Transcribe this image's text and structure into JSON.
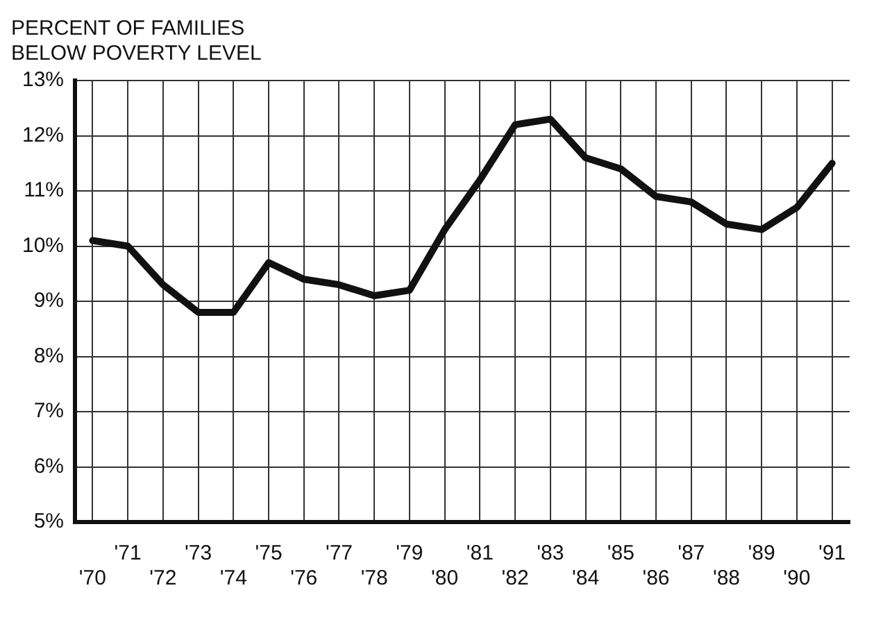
{
  "chart_data": {
    "type": "line",
    "title": "PERCENT OF FAMILIES\nBELOW POVERTY LEVEL",
    "categories": [
      "'70",
      "'71",
      "'72",
      "'73",
      "'74",
      "'75",
      "'76",
      "'77",
      "'78",
      "'79",
      "'80",
      "'81",
      "'82",
      "'83",
      "'84",
      "'85",
      "'86",
      "'87",
      "'88",
      "'89",
      "'90",
      "'91"
    ],
    "series": [
      {
        "color": "#111111",
        "values": [
          10.1,
          10.0,
          9.3,
          8.8,
          8.8,
          9.7,
          9.4,
          9.3,
          9.1,
          9.2,
          10.3,
          11.2,
          12.2,
          12.3,
          11.6,
          11.4,
          10.9,
          10.8,
          10.4,
          10.3,
          10.7,
          11.5
        ]
      }
    ],
    "ylim": [
      5,
      13
    ],
    "yticks": [
      {
        "value": 5,
        "label": "5%"
      },
      {
        "value": 6,
        "label": "6%"
      },
      {
        "value": 7,
        "label": "7%"
      },
      {
        "value": 8,
        "label": "8%"
      },
      {
        "value": 9,
        "label": "9%"
      },
      {
        "value": 10,
        "label": "10%"
      },
      {
        "value": 11,
        "label": "11%"
      },
      {
        "value": 12,
        "label": "12%"
      },
      {
        "value": 13,
        "label": "13%"
      }
    ],
    "grid": true,
    "legend": false,
    "marker": "none",
    "line_style": "solid"
  }
}
